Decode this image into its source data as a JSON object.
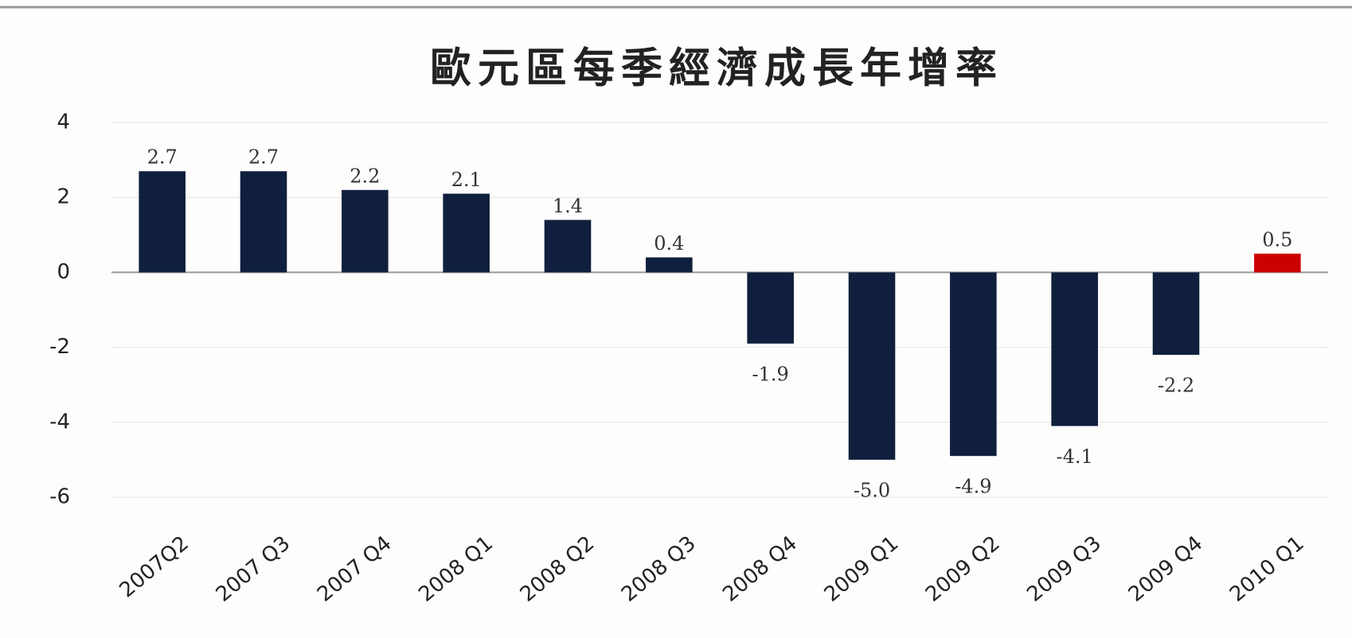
{
  "chart_data": {
    "type": "bar",
    "title": "歐元區每季經濟成長年增率",
    "categories": [
      "2007Q2",
      "2007 Q3",
      "2007 Q4",
      "2008 Q1",
      "2008 Q2",
      "2008 Q3",
      "2008 Q4",
      "2009 Q1",
      "2009 Q2",
      "2009 Q3",
      "2009 Q4",
      "2010 Q1"
    ],
    "values": [
      2.7,
      2.7,
      2.2,
      2.1,
      1.4,
      0.4,
      -1.9,
      -5.0,
      -4.9,
      -4.1,
      -2.2,
      0.5
    ],
    "value_labels": [
      "2.7",
      "2.7",
      "2.2",
      "2.1",
      "1.4",
      "0.4",
      "-1.9",
      "-5.0",
      "-4.9",
      "-4.1",
      "-2.2",
      "0.5"
    ],
    "colors": [
      "#0f1f3d",
      "#0f1f3d",
      "#0f1f3d",
      "#0f1f3d",
      "#0f1f3d",
      "#0f1f3d",
      "#0f1f3d",
      "#0f1f3d",
      "#0f1f3d",
      "#0f1f3d",
      "#0f1f3d",
      "#cc0000"
    ],
    "ylim": [
      -6,
      4
    ],
    "yticks": [
      4,
      2,
      0,
      -2,
      -4,
      -6
    ],
    "grid": true
  }
}
